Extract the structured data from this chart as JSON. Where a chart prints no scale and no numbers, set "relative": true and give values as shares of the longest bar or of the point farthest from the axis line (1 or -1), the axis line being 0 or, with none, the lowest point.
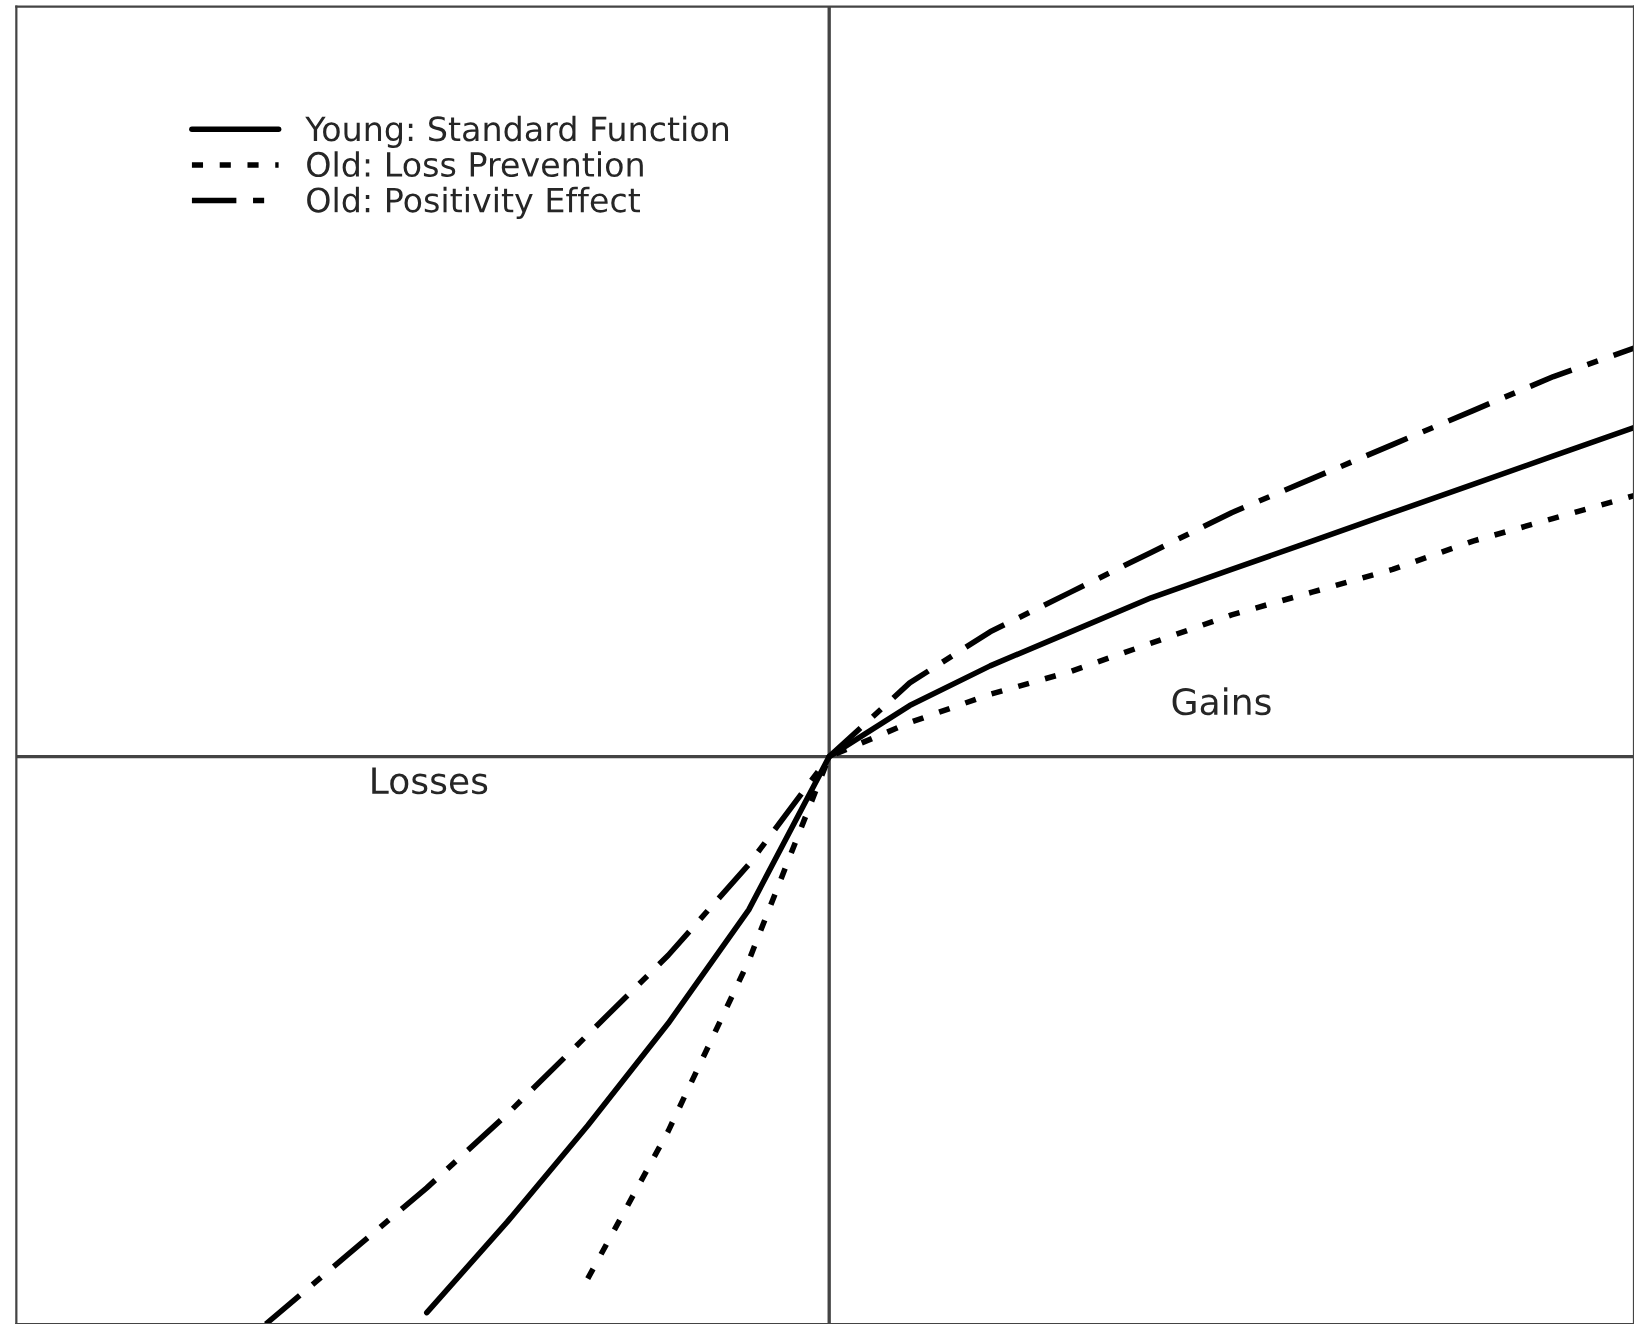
{
  "chart_data": {
    "type": "line",
    "relative": true,
    "categories": [
      null,
      null,
      null,
      null,
      null,
      null,
      null,
      null,
      null,
      null,
      null,
      null,
      null,
      null,
      null,
      null,
      null,
      null,
      null,
      null,
      null
    ],
    "series": [
      {
        "name": "Young: Standard Function",
        "color": "#000000",
        "line_style": "solid",
        "values": [
          null,
          null,
          null,
          null,
          null,
          -0.98,
          -0.82,
          -0.65,
          -0.47,
          -0.27,
          0,
          0.09,
          0.16,
          0.22,
          0.28,
          0.33,
          0.38,
          0.43,
          0.48,
          0.53,
          0.58
        ]
      },
      {
        "name": "Old: Loss Prevention",
        "color": "#000000",
        "line_style": "dotted",
        "values": [
          null,
          null,
          null,
          null,
          null,
          null,
          null,
          -0.92,
          -0.66,
          -0.36,
          0,
          0.06,
          0.11,
          0.15,
          0.2,
          0.25,
          0.29,
          0.33,
          0.38,
          0.42,
          0.46
        ]
      },
      {
        "name": "Old: Positivity Effect",
        "color": "#000000",
        "line_style": "dashdot",
        "values": [
          null,
          null,
          null,
          -1.0,
          -0.88,
          -0.76,
          -0.63,
          -0.49,
          -0.35,
          -0.19,
          0,
          0.13,
          0.22,
          0.29,
          0.36,
          0.43,
          0.49,
          0.55,
          0.61,
          0.67,
          0.72
        ]
      }
    ],
    "annotations": [
      "Gains",
      "Losses"
    ],
    "legend": "top left",
    "grid": false
  }
}
